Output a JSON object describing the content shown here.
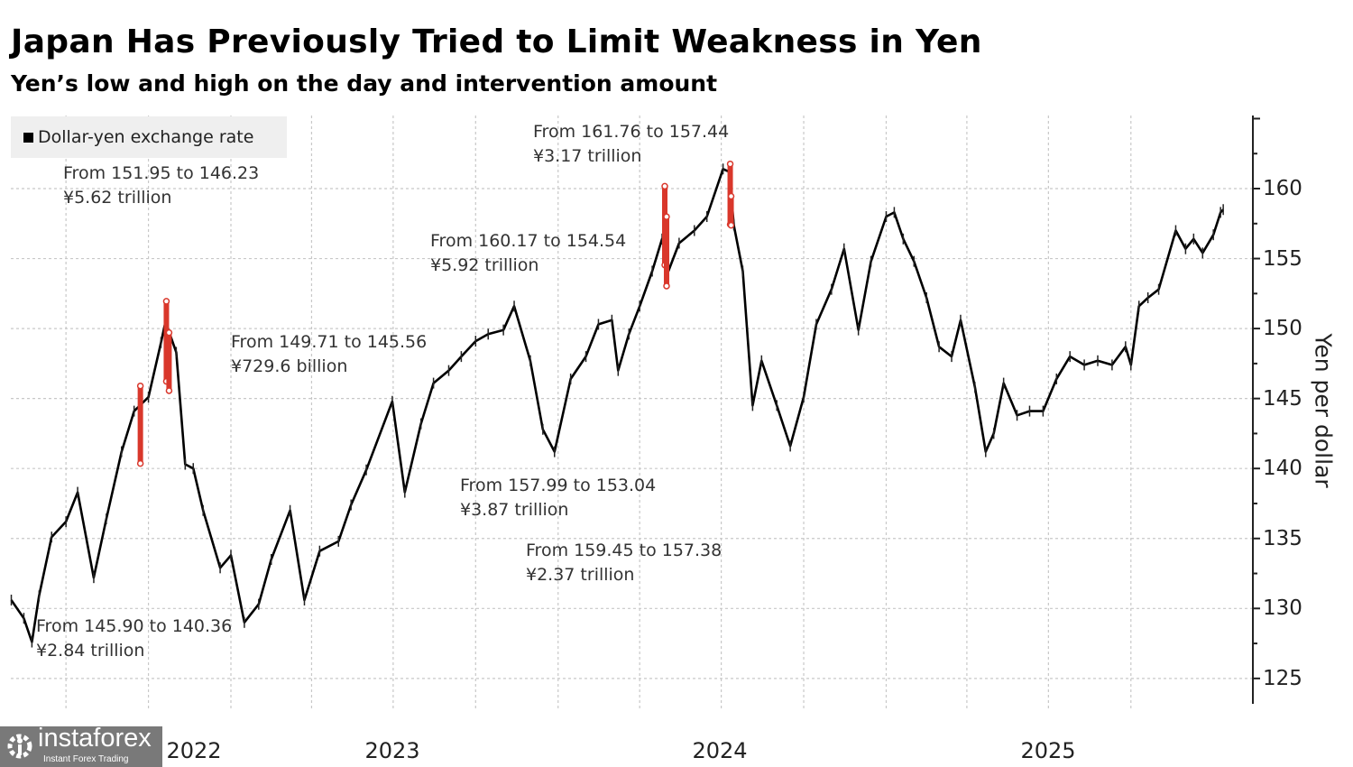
{
  "title": "Japan Has Previously Tried to Limit Weakness in Yen",
  "subtitle": "Yen’s low and high on the day and intervention amount",
  "logo": {
    "name": "instaforex",
    "tagline": "Instant Forex Trading",
    "icon": "gear-icon"
  },
  "colors": {
    "series": "#000000",
    "intervention": "#d9372b",
    "legend_bg": "#efefef",
    "grid": "#c8c8c8"
  },
  "chart_data": {
    "type": "line",
    "title": "Japan Has Previously Tried to Limit Weakness in Yen",
    "subtitle": "Yen’s low and high on the day and intervention amount",
    "legend": {
      "position": "top-left",
      "entries": [
        "Dollar-yen exchange rate"
      ]
    },
    "ylabel": "Yen per dollar",
    "y_axis_side": "right",
    "ylim": [
      123,
      165
    ],
    "yticks": [
      125,
      130,
      135,
      140,
      145,
      150,
      155,
      160
    ],
    "xticks": [
      {
        "label": "2022",
        "date": "2022-07-01"
      },
      {
        "label": "2023",
        "date": "2023-07-01"
      },
      {
        "label": "2024",
        "date": "2024-07-01"
      },
      {
        "label": "2025",
        "date": "2025-07-01"
      }
    ],
    "xlim": [
      "2022-04-28",
      "2026-01-31"
    ],
    "grid": true,
    "series": [
      {
        "name": "Dollar-yen exchange rate",
        "points": [
          [
            "2022-05-01",
            130.6
          ],
          [
            "2022-05-15",
            129.3
          ],
          [
            "2022-05-24",
            127.6
          ],
          [
            "2022-06-01",
            130.9
          ],
          [
            "2022-06-15",
            135.1
          ],
          [
            "2022-07-01",
            136.2
          ],
          [
            "2022-07-14",
            138.3
          ],
          [
            "2022-08-01",
            132.2
          ],
          [
            "2022-08-15",
            136.4
          ],
          [
            "2022-09-01",
            141.2
          ],
          [
            "2022-09-15",
            144.1
          ],
          [
            "2022-10-01",
            145.1
          ],
          [
            "2022-10-15",
            149.0
          ],
          [
            "2022-10-20",
            150.5
          ],
          [
            "2022-11-01",
            148.3
          ],
          [
            "2022-11-11",
            140.3
          ],
          [
            "2022-11-20",
            140.0
          ],
          [
            "2022-12-01",
            137.0
          ],
          [
            "2022-12-20",
            132.9
          ],
          [
            "2023-01-01",
            133.8
          ],
          [
            "2023-01-16",
            129.0
          ],
          [
            "2023-02-01",
            130.3
          ],
          [
            "2023-02-15",
            133.5
          ],
          [
            "2023-03-08",
            137.0
          ],
          [
            "2023-03-24",
            130.6
          ],
          [
            "2023-04-10",
            134.1
          ],
          [
            "2023-05-01",
            134.8
          ],
          [
            "2023-05-15",
            137.4
          ],
          [
            "2023-06-01",
            139.9
          ],
          [
            "2023-06-30",
            144.8
          ],
          [
            "2023-07-14",
            138.3
          ],
          [
            "2023-08-01",
            143.2
          ],
          [
            "2023-08-15",
            146.1
          ],
          [
            "2023-09-01",
            147.0
          ],
          [
            "2023-09-15",
            148.0
          ],
          [
            "2023-10-01",
            149.1
          ],
          [
            "2023-10-15",
            149.6
          ],
          [
            "2023-11-01",
            149.9
          ],
          [
            "2023-11-13",
            151.6
          ],
          [
            "2023-12-01",
            147.7
          ],
          [
            "2023-12-15",
            142.8
          ],
          [
            "2023-12-28",
            141.2
          ],
          [
            "2024-01-15",
            146.4
          ],
          [
            "2024-02-01",
            148.0
          ],
          [
            "2024-02-15",
            150.3
          ],
          [
            "2024-03-01",
            150.6
          ],
          [
            "2024-03-08",
            147.0
          ],
          [
            "2024-03-20",
            149.6
          ],
          [
            "2024-04-01",
            151.6
          ],
          [
            "2024-04-15",
            154.1
          ],
          [
            "2024-04-26",
            156.4
          ],
          [
            "2024-05-03",
            154.1
          ],
          [
            "2024-05-15",
            156.1
          ],
          [
            "2024-06-01",
            157.0
          ],
          [
            "2024-06-15",
            158.0
          ],
          [
            "2024-07-03",
            161.4
          ],
          [
            "2024-07-10",
            161.2
          ],
          [
            "2024-07-15",
            157.4
          ],
          [
            "2024-07-25",
            154.1
          ],
          [
            "2024-08-05",
            144.5
          ],
          [
            "2024-08-15",
            147.7
          ],
          [
            "2024-09-01",
            144.5
          ],
          [
            "2024-09-16",
            141.6
          ],
          [
            "2024-10-01",
            145.1
          ],
          [
            "2024-10-15",
            150.3
          ],
          [
            "2024-11-01",
            152.8
          ],
          [
            "2024-11-15",
            155.7
          ],
          [
            "2024-12-01",
            149.9
          ],
          [
            "2024-12-15",
            154.8
          ],
          [
            "2025-01-01",
            158.0
          ],
          [
            "2025-01-10",
            158.3
          ],
          [
            "2025-01-20",
            156.4
          ],
          [
            "2025-02-01",
            154.8
          ],
          [
            "2025-02-15",
            152.2
          ],
          [
            "2025-03-01",
            148.7
          ],
          [
            "2025-03-15",
            148.0
          ],
          [
            "2025-03-25",
            150.6
          ],
          [
            "2025-04-10",
            145.8
          ],
          [
            "2025-04-22",
            141.2
          ],
          [
            "2025-05-01",
            142.5
          ],
          [
            "2025-05-12",
            146.1
          ],
          [
            "2025-05-27",
            143.8
          ],
          [
            "2025-06-10",
            144.1
          ],
          [
            "2025-06-25",
            144.1
          ],
          [
            "2025-07-10",
            146.4
          ],
          [
            "2025-07-25",
            148.0
          ],
          [
            "2025-08-10",
            147.4
          ],
          [
            "2025-08-25",
            147.7
          ],
          [
            "2025-09-10",
            147.4
          ],
          [
            "2025-09-25",
            148.7
          ],
          [
            "2025-10-01",
            147.4
          ],
          [
            "2025-10-10",
            151.6
          ],
          [
            "2025-10-20",
            152.2
          ],
          [
            "2025-11-01",
            152.8
          ],
          [
            "2025-11-20",
            157.0
          ],
          [
            "2025-12-01",
            155.7
          ],
          [
            "2025-12-10",
            156.4
          ],
          [
            "2025-12-20",
            155.4
          ],
          [
            "2026-01-01",
            156.7
          ],
          [
            "2026-01-09",
            158.3
          ],
          [
            "2026-01-12",
            158.5
          ]
        ]
      }
    ],
    "interventions": [
      {
        "date": "2022-09-22",
        "from": 145.9,
        "to": 140.36,
        "amount": "¥2.84 trillion",
        "label": "From 145.90 to 140.36"
      },
      {
        "date": "2022-10-21",
        "from": 151.95,
        "to": 146.23,
        "amount": "¥5.62 trillion",
        "label": "From 151.95 to 146.23"
      },
      {
        "date": "2022-10-24",
        "from": 149.71,
        "to": 145.56,
        "amount": "¥729.6 billion",
        "label": "From 149.71 to 145.56"
      },
      {
        "date": "2024-04-29",
        "from": 160.17,
        "to": 154.54,
        "amount": "¥5.92 trillion",
        "label": "From 160.17 to 154.54"
      },
      {
        "date": "2024-05-01",
        "from": 157.99,
        "to": 153.04,
        "amount": "¥3.87 trillion",
        "label": "From 157.99 to 153.04"
      },
      {
        "date": "2024-07-11",
        "from": 161.76,
        "to": 157.44,
        "amount": "¥3.17 trillion",
        "label": "From 161.76 to 157.44"
      },
      {
        "date": "2024-07-12",
        "from": 159.45,
        "to": 157.38,
        "amount": "¥2.37 trillion",
        "label": "From 159.45 to 157.38"
      }
    ]
  }
}
